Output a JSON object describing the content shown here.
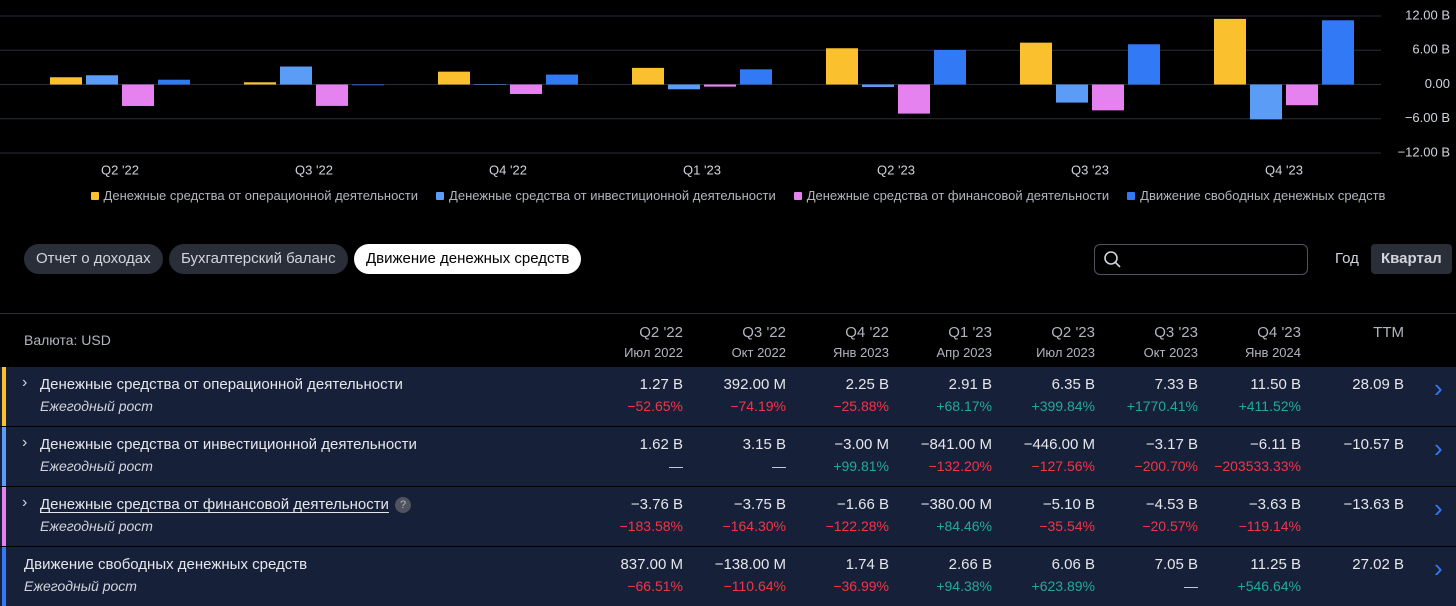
{
  "chart_data": {
    "type": "bar",
    "categories": [
      "Q2 '22",
      "Q3 '22",
      "Q4 '22",
      "Q1 '23",
      "Q2 '23",
      "Q3 '23",
      "Q4 '23"
    ],
    "series": [
      {
        "name": "Денежные средства от операционной деятельности",
        "color": "#fbc02d",
        "values": [
          1.27,
          0.392,
          2.25,
          2.91,
          6.35,
          7.33,
          11.5
        ]
      },
      {
        "name": "Денежные средства от инвестиционной деятельности",
        "color": "#5b9cf6",
        "values": [
          1.62,
          3.15,
          -0.003,
          -0.841,
          -0.446,
          -3.17,
          -6.11
        ]
      },
      {
        "name": "Денежные средства от финансовой деятельности",
        "color": "#e682f0",
        "values": [
          -3.76,
          -3.75,
          -1.66,
          -0.38,
          -5.1,
          -4.53,
          -3.63
        ]
      },
      {
        "name": "Движение свободных денежных средств",
        "color": "#3179f5",
        "values": [
          0.837,
          -0.138,
          1.74,
          2.66,
          6.06,
          7.05,
          11.25
        ]
      }
    ],
    "ylim": [
      -12,
      12
    ],
    "yticks": [
      {
        "value": 12,
        "label": "12.00 B"
      },
      {
        "value": 6,
        "label": "6.00 B"
      },
      {
        "value": 0,
        "label": "0.00"
      },
      {
        "value": -6,
        "label": "−6.00 B"
      },
      {
        "value": -12,
        "label": "−12.00 B"
      }
    ],
    "grid": true
  },
  "tabs": [
    {
      "label": "Отчет о доходах",
      "active": false
    },
    {
      "label": "Бухгалтерский баланс",
      "active": false
    },
    {
      "label": "Движение денежных средств",
      "active": true
    }
  ],
  "periods": [
    {
      "label": "Год",
      "active": false
    },
    {
      "label": "Квартал",
      "active": true
    }
  ],
  "table": {
    "currency": "Валюта: USD",
    "columns": [
      {
        "period": "Q2 '22",
        "date": "Июл 2022"
      },
      {
        "period": "Q3 '22",
        "date": "Окт 2022"
      },
      {
        "period": "Q4 '22",
        "date": "Янв 2023"
      },
      {
        "period": "Q1 '23",
        "date": "Апр 2023"
      },
      {
        "period": "Q2 '23",
        "date": "Июл 2023"
      },
      {
        "period": "Q3 '23",
        "date": "Окт 2023"
      },
      {
        "period": "Q4 '23",
        "date": "Янв 2024"
      },
      {
        "period": "TTM"
      }
    ],
    "rows": [
      {
        "name": "Денежные средства от операционной деятельности",
        "growth_label": "Ежегодный рост",
        "expandable": true,
        "help": false,
        "values": [
          "1.27 B",
          "392.00 M",
          "2.25 B",
          "2.91 B",
          "6.35 B",
          "7.33 B",
          "11.50 B",
          "28.09 B"
        ],
        "growth": [
          "−52.65%",
          "−74.19%",
          "−25.88%",
          "+68.17%",
          "+399.84%",
          "+1770.41%",
          "+411.52%"
        ]
      },
      {
        "name": "Денежные средства от инвестиционной деятельности",
        "growth_label": "Ежегодный рост",
        "expandable": true,
        "help": false,
        "values": [
          "1.62 B",
          "3.15 B",
          "−3.00 M",
          "−841.00 M",
          "−446.00 M",
          "−3.17 B",
          "−6.11 B",
          "−10.57 B"
        ],
        "growth": [
          "—",
          "—",
          "+99.81%",
          "−132.20%",
          "−127.56%",
          "−200.70%",
          "−203533.33%"
        ]
      },
      {
        "name": "Денежные средства от финансовой деятельности",
        "growth_label": "Ежегодный рост",
        "expandable": true,
        "help": true,
        "values": [
          "−3.76 B",
          "−3.75 B",
          "−1.66 B",
          "−380.00 M",
          "−5.10 B",
          "−4.53 B",
          "−3.63 B",
          "−13.63 B"
        ],
        "growth": [
          "−183.58%",
          "−164.30%",
          "−122.28%",
          "+84.46%",
          "−35.54%",
          "−20.57%",
          "−119.14%"
        ]
      },
      {
        "name": "Движение свободных денежных средств",
        "growth_label": "Ежегодный рост",
        "expandable": false,
        "help": false,
        "values": [
          "837.00 M",
          "−138.00 M",
          "1.74 B",
          "2.66 B",
          "6.06 B",
          "7.05 B",
          "11.25 B",
          "27.02 B"
        ],
        "growth": [
          "−66.51%",
          "−110.64%",
          "−36.99%",
          "+94.38%",
          "+623.89%",
          "—",
          "+546.64%"
        ]
      }
    ]
  }
}
